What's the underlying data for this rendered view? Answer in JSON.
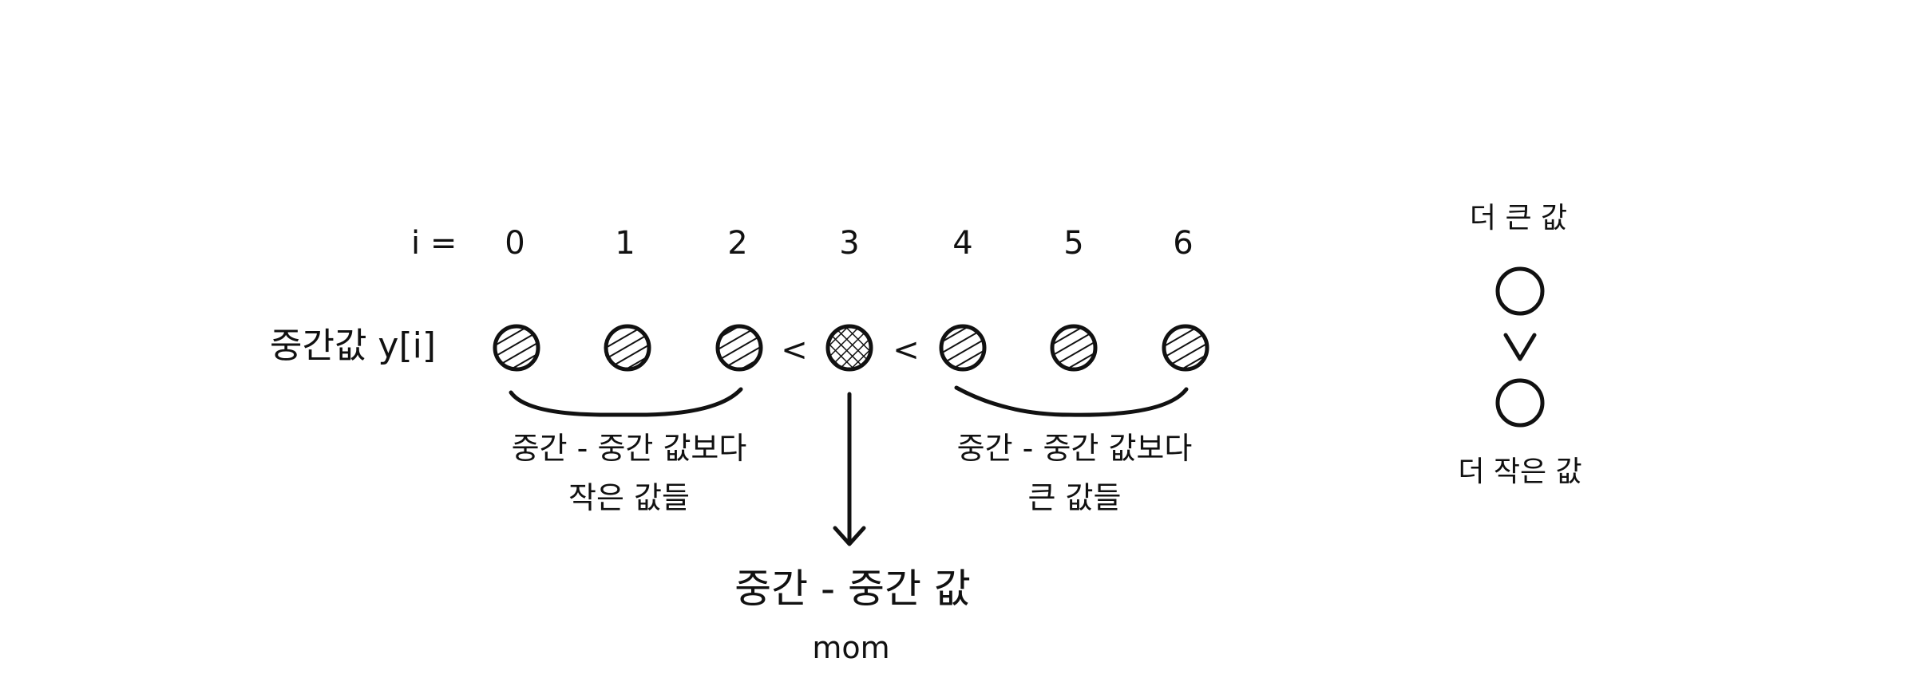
{
  "index_prefix": "i =",
  "indices": [
    "0",
    "1",
    "2",
    "3",
    "4",
    "5",
    "6"
  ],
  "row_label": "중간값 y[i]",
  "comparators": [
    "<",
    "<"
  ],
  "left_group": {
    "line1": "중간 - 중간 값보다",
    "line2": "작은 값들"
  },
  "right_group": {
    "line1": "중간 - 중간 값보다",
    "line2": "큰 값들"
  },
  "median_of_medians": {
    "label": "중간 - 중간 값",
    "sublabel": "mom"
  },
  "legend": {
    "top": "더 큰 값",
    "bottom": "더 작은 값"
  },
  "colors": {
    "ink": "#111111",
    "background": "#ffffff"
  }
}
